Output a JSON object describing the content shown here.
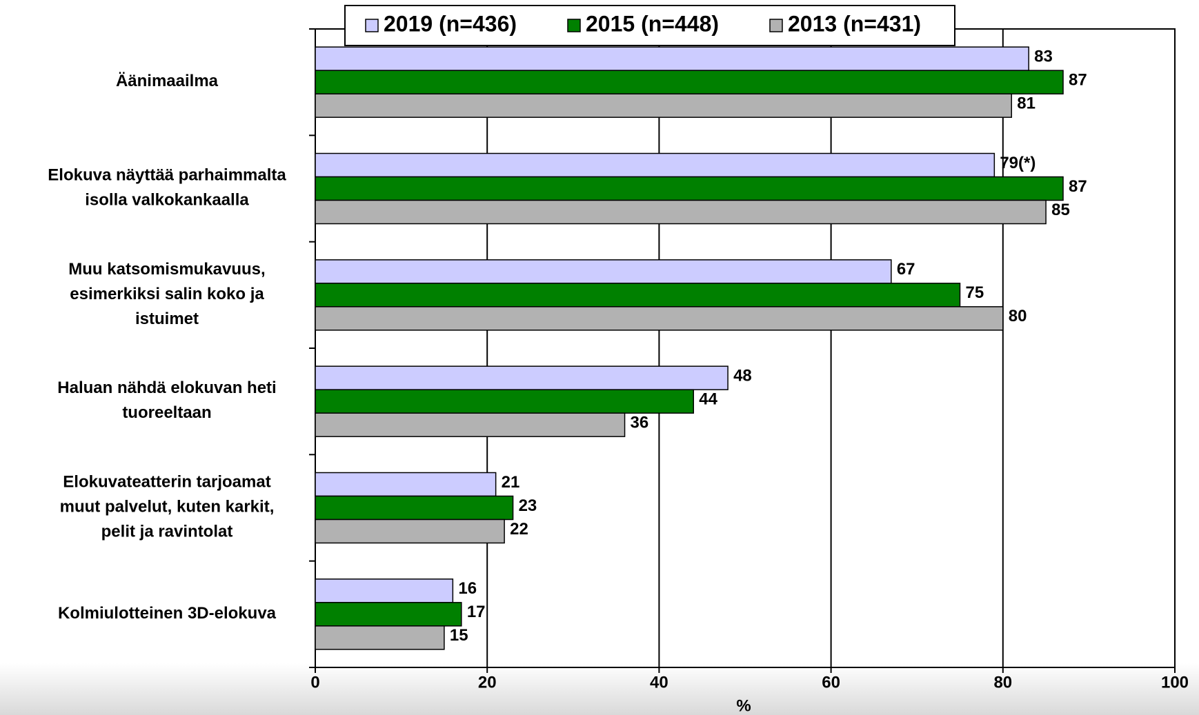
{
  "chart_data": {
    "type": "hbar",
    "categories": [
      "Äänimaailma",
      "Elokuva näyttää parhaimmalta\nisolla valkokankaalla",
      "Muu katsomismukavuus,\nesimerkiksi salin koko ja\nistuimet",
      "Haluan nähdä elokuvan heti\ntuoreeltaan",
      "Elokuvateatterin tarjoamat\nmuut palvelut, kuten karkit,\npelit ja ravintolat",
      "Kolmiulotteinen 3D-elokuva"
    ],
    "series": [
      {
        "name": "2019 (n=436)",
        "color": "#ccccff",
        "values": [
          83,
          79,
          67,
          48,
          21,
          16
        ],
        "value_labels": [
          "83",
          "79(*)",
          "67",
          "48",
          "21",
          "16"
        ]
      },
      {
        "name": "2015 (n=448)",
        "color": "#008000",
        "values": [
          87,
          87,
          75,
          44,
          23,
          17
        ]
      },
      {
        "name": "2013 (n=431)",
        "color": "#b2b2b2",
        "values": [
          81,
          85,
          80,
          36,
          22,
          15
        ]
      }
    ],
    "xlim": [
      0,
      100
    ],
    "xticks": [
      0,
      20,
      40,
      60,
      80,
      100
    ],
    "xlabel": "%",
    "grid": true
  }
}
